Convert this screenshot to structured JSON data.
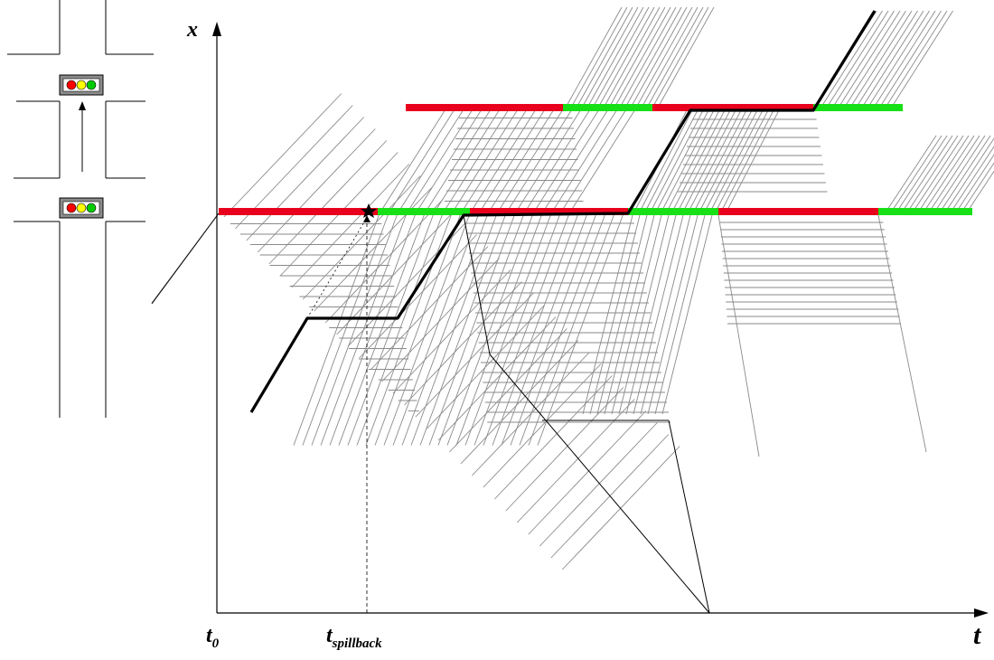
{
  "diagram": {
    "labels": {
      "y_axis": "x",
      "x_axis": "t",
      "t0_main": "t",
      "t0_sub": "0",
      "spill_main": "t",
      "spill_sub": "spillback"
    },
    "colors": {
      "red_phase": "#e8001c",
      "green_phase": "#17e017",
      "trajectory": "#000000",
      "wave_line": "#8a8a8a",
      "shockwave": "#000000",
      "signal_housing": "#8c8c8c",
      "light_red": "#ff0000",
      "light_yellow": "#ffff00",
      "light_green": "#00cc00"
    },
    "signals": [
      {
        "name": "upstream-signal",
        "phases": [
          "red",
          "green",
          "red",
          "green",
          "red",
          "green"
        ]
      },
      {
        "name": "downstream-signal",
        "phases": [
          "red",
          "green",
          "red",
          "green"
        ]
      }
    ],
    "icons": [
      "traffic-light-icon",
      "star-marker-icon",
      "intersection-schematic-icon"
    ]
  }
}
